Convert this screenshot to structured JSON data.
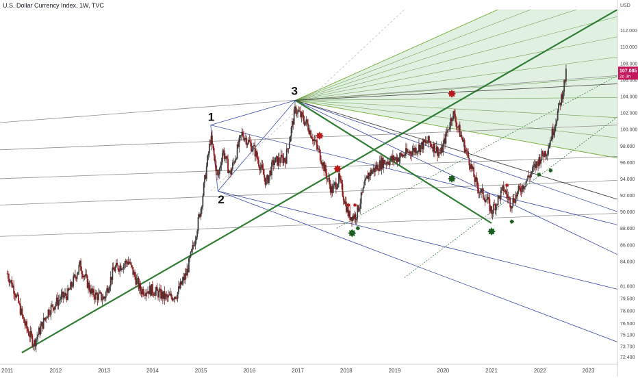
{
  "title": "U.S. Dollar Currency Index, 1W, TVC",
  "chart_data": {
    "type": "candlestick",
    "currency_label": "USD",
    "price_range": [
      71.5,
      114.5
    ],
    "x_range": [
      2010.85,
      2023.6
    ],
    "y_ticks": [
      "112.000",
      "110.000",
      "108.000",
      "106.000",
      "104.000",
      "102.000",
      "100.000",
      "98.000",
      "96.000",
      "94.000",
      "92.000",
      "90.000",
      "88.000",
      "86.000",
      "84.000",
      "81.000",
      "79.500",
      "78.000",
      "76.500",
      "75.100",
      "73.700",
      "72.400"
    ],
    "x_ticks": [
      "2011",
      "2012",
      "2013",
      "2014",
      "2015",
      "2016",
      "2017",
      "2018",
      "2019",
      "2020",
      "2021",
      "2022",
      "2023"
    ],
    "last_price": {
      "value": "107.085",
      "countdown": "2d 3h",
      "color": "#c2185b"
    },
    "waypoints": [
      [
        2011.0,
        82.5
      ],
      [
        2011.15,
        80.5
      ],
      [
        2011.35,
        76.5
      ],
      [
        2011.55,
        74.0
      ],
      [
        2011.85,
        78.0
      ],
      [
        2012.1,
        79.5
      ],
      [
        2012.25,
        80.0
      ],
      [
        2012.5,
        83.5
      ],
      [
        2012.75,
        80.0
      ],
      [
        2013.0,
        79.5
      ],
      [
        2013.2,
        83.0
      ],
      [
        2013.5,
        84.0
      ],
      [
        2013.75,
        80.5
      ],
      [
        2014.0,
        80.5
      ],
      [
        2014.3,
        79.5
      ],
      [
        2014.5,
        80.0
      ],
      [
        2014.7,
        82.5
      ],
      [
        2014.85,
        86.0
      ],
      [
        2015.0,
        90.5
      ],
      [
        2015.2,
        99.0
      ],
      [
        2015.35,
        94.0
      ],
      [
        2015.45,
        97.5
      ],
      [
        2015.6,
        94.5
      ],
      [
        2015.85,
        99.5
      ],
      [
        2016.1,
        97.5
      ],
      [
        2016.35,
        93.5
      ],
      [
        2016.5,
        96.0
      ],
      [
        2016.75,
        96.5
      ],
      [
        2016.95,
        102.5
      ],
      [
        2017.2,
        100.5
      ],
      [
        2017.45,
        97.0
      ],
      [
        2017.7,
        92.5
      ],
      [
        2017.85,
        94.0
      ],
      [
        2018.05,
        89.5
      ],
      [
        2018.2,
        89.5
      ],
      [
        2018.45,
        94.5
      ],
      [
        2018.75,
        96.0
      ],
      [
        2019.05,
        96.5
      ],
      [
        2019.4,
        97.5
      ],
      [
        2019.7,
        98.5
      ],
      [
        2019.95,
        97.0
      ],
      [
        2020.2,
        102.0
      ],
      [
        2020.35,
        99.5
      ],
      [
        2020.55,
        96.0
      ],
      [
        2020.7,
        93.0
      ],
      [
        2020.9,
        91.5
      ],
      [
        2021.0,
        90.0
      ],
      [
        2021.25,
        92.8
      ],
      [
        2021.4,
        91.0
      ],
      [
        2021.6,
        92.8
      ],
      [
        2021.8,
        94.5
      ],
      [
        2022.0,
        96.5
      ],
      [
        2022.15,
        97.5
      ],
      [
        2022.3,
        100.5
      ],
      [
        2022.45,
        104.0
      ],
      [
        2022.55,
        107.0
      ]
    ],
    "pitchfork": {
      "points": [
        [
          2015.2,
          100.5
        ],
        [
          2015.35,
          92.5
        ],
        [
          2016.95,
          103.5
        ]
      ],
      "labels": [
        "1",
        "2",
        "3"
      ]
    },
    "red_markers": [
      [
        2017.45,
        99.2
      ],
      [
        2017.82,
        95.2
      ],
      [
        2018.05,
        90.8
      ],
      [
        2018.18,
        90.8
      ],
      [
        2020.18,
        104.3
      ],
      [
        2021.32,
        93.2
      ]
    ],
    "green_markers": [
      [
        2018.12,
        87.4
      ],
      [
        2018.24,
        88.0
      ],
      [
        2020.18,
        94.0
      ],
      [
        2021.0,
        87.6
      ],
      [
        2021.42,
        88.8
      ],
      [
        2021.98,
        94.5
      ],
      [
        2022.22,
        95.0
      ]
    ],
    "colors": {
      "up": "#3c3c3c",
      "down": "#8b1a1a",
      "trend": "#2e7d32",
      "fork_blue": "#3949ab",
      "fork_fill": "#c8e6c9",
      "marker_red": "#b71c1c",
      "marker_green": "#1b5e20"
    }
  }
}
